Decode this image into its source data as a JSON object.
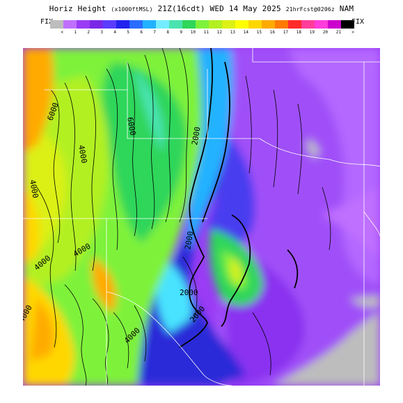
{
  "title": {
    "field": "Horiz Height",
    "units": "(x1000ftMSL)",
    "valid": "21Z(16cdt) WED 14 May 2025",
    "forecast": "21hrFcst@0206z",
    "model": "NAM"
  },
  "legend": {
    "left_label": "FIX",
    "right_label": "FIX",
    "bins": [
      {
        "label": "<",
        "color": "#bdbdbd"
      },
      {
        "label": "1",
        "color": "#c070ff"
      },
      {
        "label": "2",
        "color": "#9a3cf5"
      },
      {
        "label": "3",
        "color": "#7a28e6"
      },
      {
        "label": "4",
        "color": "#5a3cff"
      },
      {
        "label": "5",
        "color": "#2222ee"
      },
      {
        "label": "6",
        "color": "#2a6cff"
      },
      {
        "label": "7",
        "color": "#21b2ff"
      },
      {
        "label": "8",
        "color": "#74ecff"
      },
      {
        "label": "9",
        "color": "#4ae3b0"
      },
      {
        "label": "10",
        "color": "#2ed65a"
      },
      {
        "label": "11",
        "color": "#7ef23a"
      },
      {
        "label": "12",
        "color": "#b2f022"
      },
      {
        "label": "13",
        "color": "#dcf014"
      },
      {
        "label": "14",
        "color": "#ffff00"
      },
      {
        "label": "15",
        "color": "#ffd700"
      },
      {
        "label": "16",
        "color": "#ffaa00"
      },
      {
        "label": "17",
        "color": "#ff7a00"
      },
      {
        "label": "18",
        "color": "#ff2a2a"
      },
      {
        "label": "19",
        "color": "#ff3c9a"
      },
      {
        "label": "20",
        "color": "#ff3cdc"
      },
      {
        "label": "21",
        "color": "#cc00cc"
      },
      {
        "label": ">",
        "color": "#000000"
      }
    ]
  },
  "contour_labels": [
    {
      "text": "6000"
    },
    {
      "text": "6000"
    },
    {
      "text": "4000"
    },
    {
      "text": "4000"
    },
    {
      "text": "2000"
    },
    {
      "text": "2000"
    },
    {
      "text": "2000"
    },
    {
      "text": "4000"
    },
    {
      "text": "4000"
    },
    {
      "text": "4000"
    },
    {
      "text": "4000"
    },
    {
      "text": "2000"
    }
  ]
}
